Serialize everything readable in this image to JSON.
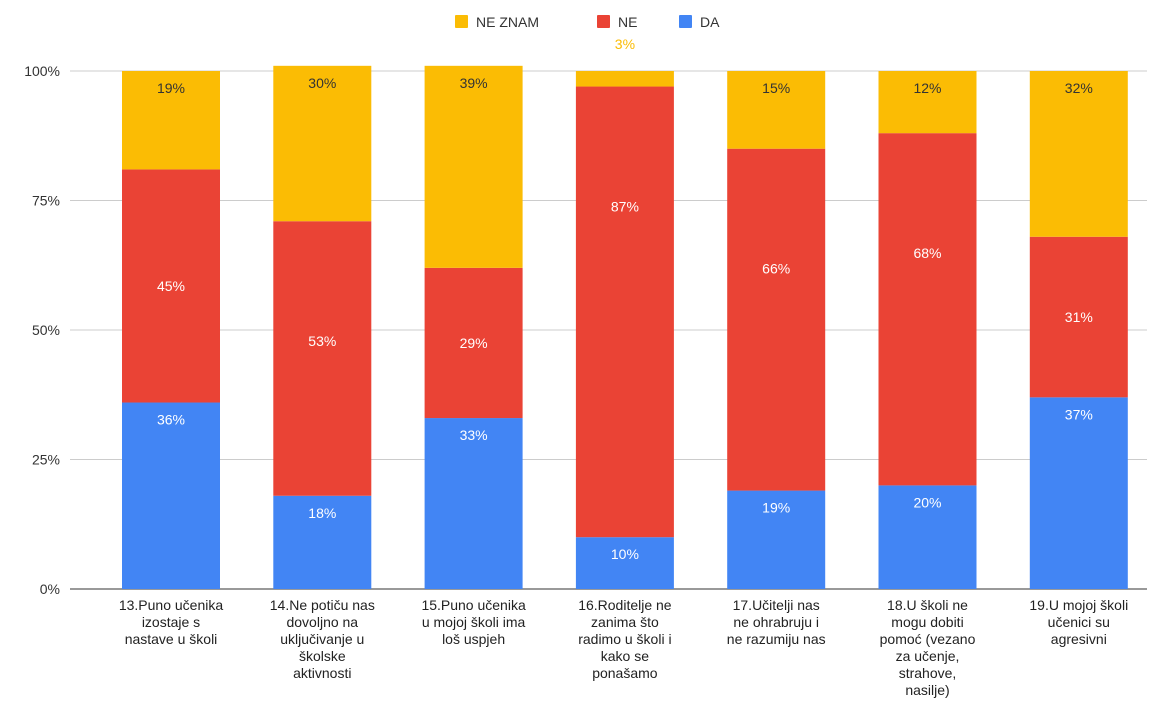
{
  "chart_data": {
    "type": "bar",
    "stacked": true,
    "percent_stacked": true,
    "legend_position": "top",
    "grid": true,
    "ylim": [
      0,
      100
    ],
    "y_ticks": [
      "0%",
      "25%",
      "50%",
      "75%",
      "100%"
    ],
    "y_tick_values": [
      0,
      25,
      50,
      75,
      100
    ],
    "categories": [
      [
        "13.Puno učenika",
        "izostaje s",
        "nastave  u školi"
      ],
      [
        "14.Ne potiču nas",
        "dovoljno na",
        "uključivanje u",
        "školske",
        "aktivnosti"
      ],
      [
        "15.Puno učenika",
        "u mojoj školi ima",
        "loš uspjeh"
      ],
      [
        "16.Roditelje ne",
        "zanima što",
        "radimo u školi i",
        "kako se",
        "ponašamo"
      ],
      [
        "17.Učitelji nas",
        "ne ohrabruju i",
        "ne razumiju nas"
      ],
      [
        "18.U školi ne",
        "mogu dobiti",
        "pomoć (vezano",
        "za učenje,",
        "strahove,",
        "nasilje)"
      ],
      [
        "19.U mojoj školi",
        "učenici su",
        "agresivni"
      ]
    ],
    "series": [
      {
        "name": "DA",
        "color": "#4285f4",
        "values": [
          36,
          18,
          33,
          10,
          19,
          20,
          37
        ],
        "labels": [
          "36%",
          "18%",
          "33%",
          "10%",
          "19%",
          "20%",
          "37%"
        ],
        "label_color": "#ffffff"
      },
      {
        "name": "NE",
        "color": "#ea4335",
        "values": [
          45,
          53,
          29,
          87,
          66,
          68,
          31
        ],
        "labels": [
          "45%",
          "53%",
          "29%",
          "87%",
          "66%",
          "68%",
          "31%"
        ],
        "label_color": "#ffffff"
      },
      {
        "name": "NE ZNAM",
        "color": "#fbbc04",
        "values": [
          19,
          30,
          39,
          3,
          15,
          12,
          32
        ],
        "labels": [
          "19%",
          "30%",
          "39%",
          "3%",
          "15%",
          "12%",
          "32%"
        ],
        "label_color": "#333333"
      }
    ],
    "legend_order": [
      "NE ZNAM",
      "NE",
      "DA"
    ],
    "outside_label_color": "#fbbc04"
  }
}
